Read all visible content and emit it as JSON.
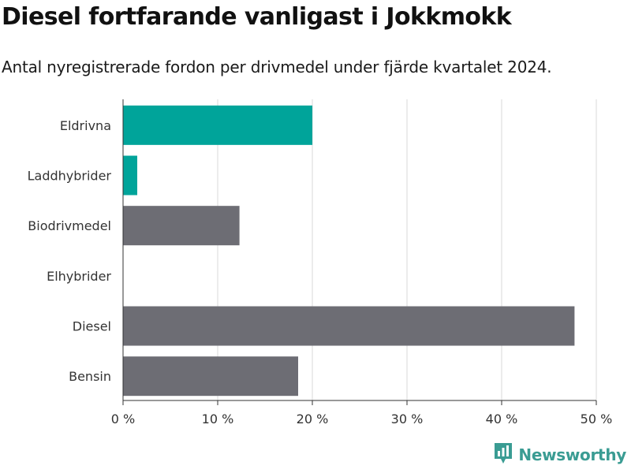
{
  "chart_data": {
    "type": "bar",
    "orientation": "horizontal",
    "title": "Diesel fortfarande vanligast i Jokkmokk",
    "subtitle": "Antal nyregistrerade fordon per drivmedel under fjärde kvartalet 2024.",
    "categories": [
      "Eldrivna",
      "Laddhybrider",
      "Biodrivmedel",
      "Elhybrider",
      "Diesel",
      "Bensin"
    ],
    "values": [
      20.0,
      1.5,
      12.3,
      0.0,
      47.7,
      18.5
    ],
    "bar_colors": [
      "#00a49a",
      "#00a49a",
      "#6d6d74",
      "#6d6d74",
      "#6d6d74",
      "#6d6d74"
    ],
    "xlim": [
      0,
      50
    ],
    "x_ticks": [
      0,
      10,
      20,
      30,
      40,
      50
    ],
    "x_tick_labels": [
      "0 %",
      "10 %",
      "20 %",
      "30 %",
      "40 %",
      "50 %"
    ],
    "xlabel": "",
    "ylabel": "",
    "grid": "vertical",
    "gridline_color": "#d9d9d9"
  },
  "brand": {
    "name": "Newsworthy",
    "logo_icon": "bar-chart-speech-bubble-icon",
    "color": "#3a9c93"
  }
}
